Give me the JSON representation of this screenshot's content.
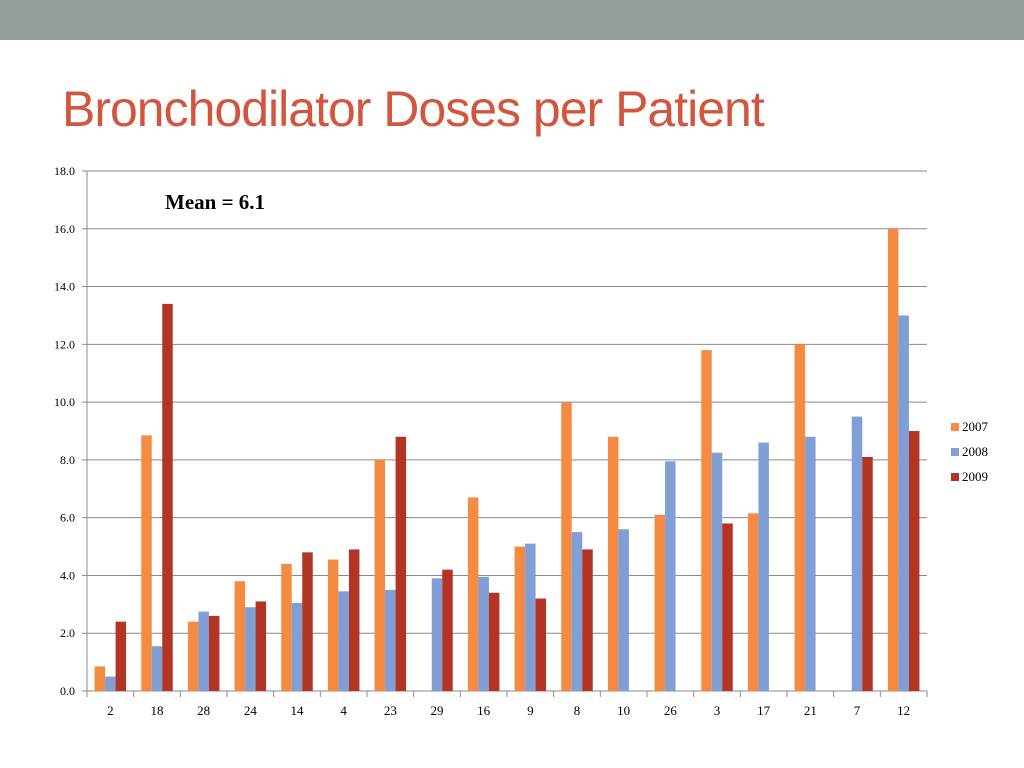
{
  "slide": {
    "title": "Bronchodilator Doses per Patient",
    "top_bar_color": "#929f98",
    "title_color": "#d2553d"
  },
  "chart_data": {
    "type": "bar",
    "title": "",
    "xlabel": "",
    "ylabel": "",
    "ylim": [
      0,
      18
    ],
    "yticks": [
      "0.0",
      "2.0",
      "4.0",
      "6.0",
      "8.0",
      "10.0",
      "12.0",
      "14.0",
      "16.0",
      "18.0"
    ],
    "grid": true,
    "legend_position": "right",
    "annotation": "Mean = 6.1",
    "categories": [
      "2",
      "18",
      "28",
      "24",
      "14",
      "4",
      "23",
      "29",
      "16",
      "9",
      "8",
      "10",
      "26",
      "3",
      "17",
      "21",
      "7",
      "12"
    ],
    "series": [
      {
        "name": "2007",
        "color": "#f58a42",
        "values": [
          0.85,
          8.85,
          2.4,
          3.8,
          4.4,
          4.55,
          8.0,
          0,
          6.7,
          5.0,
          10.0,
          8.8,
          6.1,
          11.8,
          6.15,
          12.0,
          0,
          16.0
        ]
      },
      {
        "name": "2008",
        "color": "#7f9fd6",
        "values": [
          0.5,
          1.55,
          2.75,
          2.9,
          3.05,
          3.45,
          3.5,
          3.9,
          3.95,
          5.1,
          5.5,
          5.6,
          7.95,
          8.25,
          8.6,
          8.8,
          9.5,
          13.0
        ]
      },
      {
        "name": "2009",
        "color": "#b13425",
        "values": [
          2.4,
          13.4,
          2.6,
          3.1,
          4.8,
          4.9,
          8.8,
          4.2,
          3.4,
          3.2,
          4.9,
          0,
          0,
          5.8,
          0,
          0,
          8.1,
          9.0
        ]
      }
    ]
  }
}
